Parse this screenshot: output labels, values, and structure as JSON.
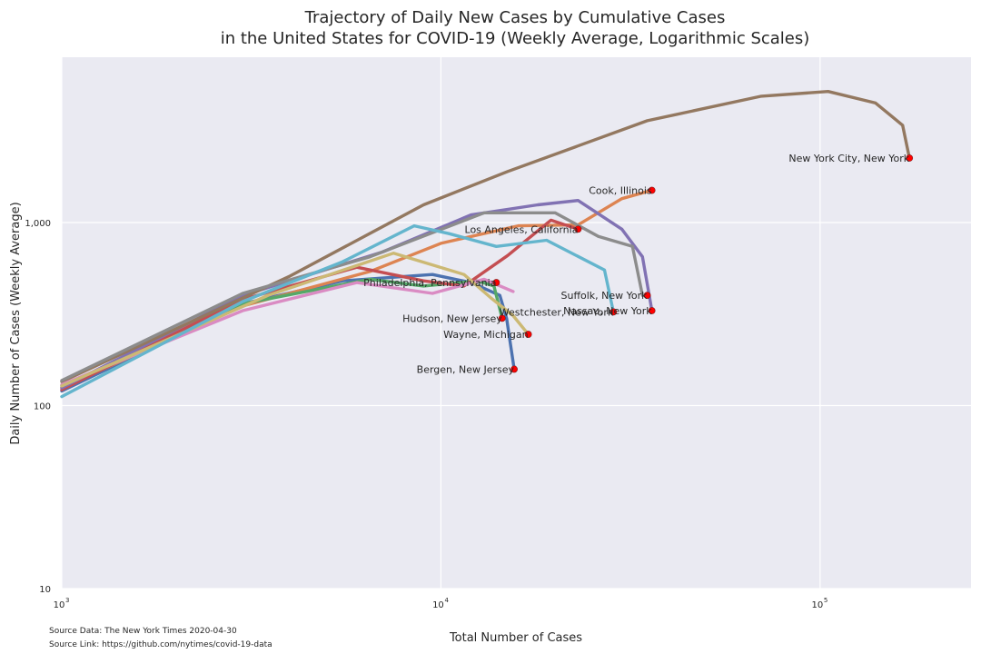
{
  "chart_data": {
    "type": "line",
    "title_line1": "Trajectory of Daily New Cases by Cumulative Cases",
    "title_line2": "in the United States for COVID-19 (Weekly Average, Logarithmic Scales)",
    "xlabel": "Total Number of Cases",
    "ylabel": "Daily Number of Cases (Weekly Average)",
    "x_scale": "log",
    "y_scale": "log",
    "xlim": [
      1000,
      250000
    ],
    "ylim": [
      10,
      8000
    ],
    "x_ticks": [
      {
        "value": 1000,
        "base": "10",
        "exp": "3"
      },
      {
        "value": 10000,
        "base": "10",
        "exp": "4"
      },
      {
        "value": 100000,
        "base": "10",
        "exp": "5"
      }
    ],
    "y_ticks": [
      {
        "value": 10,
        "label": "10"
      },
      {
        "value": 100,
        "label": "100"
      },
      {
        "value": 1000,
        "label": "1,000"
      }
    ],
    "grid": true,
    "background": "#eaeaf2",
    "series": [
      {
        "name": "Bergen, New Jersey",
        "color": "#4c72b0",
        "points": [
          [
            1000,
            120
          ],
          [
            3000,
            360
          ],
          [
            5500,
            480
          ],
          [
            9500,
            520
          ],
          [
            12000,
            470
          ],
          [
            14300,
            400
          ],
          [
            14900,
            300
          ],
          [
            15600,
            158
          ]
        ]
      },
      {
        "name": "Los Angeles, California",
        "color": "#dd8452",
        "points": [
          [
            1000,
            125
          ],
          [
            3000,
            350
          ],
          [
            6500,
            540
          ],
          [
            10000,
            770
          ],
          [
            16000,
            960
          ],
          [
            23000,
            970
          ],
          [
            30000,
            1350
          ],
          [
            36000,
            1500
          ]
        ]
      },
      {
        "name": "Hudson, New Jersey",
        "color": "#55a868",
        "points": [
          [
            1000,
            128
          ],
          [
            3000,
            360
          ],
          [
            6500,
            490
          ],
          [
            9000,
            450
          ],
          [
            12500,
            480
          ],
          [
            13800,
            450
          ],
          [
            14500,
            300
          ]
        ]
      },
      {
        "name": "Nassau, New York",
        "color": "#c44e52",
        "points": [
          [
            1000,
            122
          ],
          [
            3000,
            380
          ],
          [
            6000,
            570
          ],
          [
            9000,
            480
          ],
          [
            11500,
            450
          ],
          [
            15000,
            660
          ],
          [
            19500,
            1030
          ],
          [
            23000,
            920
          ]
        ]
      },
      {
        "name": "Suffolk, New York",
        "color": "#8172b3",
        "points": [
          [
            1000,
            125
          ],
          [
            3000,
            400
          ],
          [
            7000,
            690
          ],
          [
            12000,
            1100
          ],
          [
            18000,
            1250
          ],
          [
            23000,
            1320
          ],
          [
            30000,
            920
          ],
          [
            34000,
            650
          ],
          [
            36000,
            330
          ]
        ]
      },
      {
        "name": "New York City, New York",
        "color": "#937860",
        "points": [
          [
            1000,
            135
          ],
          [
            4000,
            510
          ],
          [
            9000,
            1250
          ],
          [
            15000,
            1900
          ],
          [
            35000,
            3600
          ],
          [
            70000,
            4900
          ],
          [
            105000,
            5200
          ],
          [
            140000,
            4500
          ],
          [
            165000,
            3400
          ],
          [
            172000,
            2250
          ]
        ]
      },
      {
        "name": "Westchester, New York",
        "color": "#da8bc3",
        "points": [
          [
            1000,
            130
          ],
          [
            3000,
            330
          ],
          [
            6000,
            470
          ],
          [
            9500,
            410
          ],
          [
            13000,
            490
          ],
          [
            15500,
            420
          ]
        ]
      },
      {
        "name": "Cook, Illinois",
        "color": "#8c8c8c",
        "points": [
          [
            1000,
            137
          ],
          [
            3000,
            410
          ],
          [
            6500,
            650
          ],
          [
            9500,
            880
          ],
          [
            13000,
            1130
          ],
          [
            20000,
            1130
          ],
          [
            26000,
            840
          ],
          [
            32000,
            740
          ],
          [
            34000,
            400
          ]
        ]
      },
      {
        "name": "Wayne, Michigan",
        "color": "#ccb974",
        "points": [
          [
            1000,
            128
          ],
          [
            3500,
            400
          ],
          [
            7500,
            680
          ],
          [
            11500,
            520
          ],
          [
            13500,
            390
          ],
          [
            15500,
            310
          ],
          [
            17000,
            245
          ]
        ]
      },
      {
        "name": "Philadelphia, Pennsylvania",
        "color": "#64b5cd",
        "points": [
          [
            1000,
            112
          ],
          [
            3000,
            370
          ],
          [
            5500,
            610
          ],
          [
            8500,
            960
          ],
          [
            10500,
            870
          ],
          [
            14000,
            740
          ],
          [
            19000,
            800
          ],
          [
            27000,
            550
          ],
          [
            28500,
            325
          ]
        ]
      }
    ],
    "annotations": [
      {
        "label": "New York City, New York",
        "x": 172000,
        "y": 2250
      },
      {
        "label": "Cook, Illinois",
        "x": 36000,
        "y": 1500
      },
      {
        "label": "Los Angeles, California",
        "x": 23000,
        "y": 920
      },
      {
        "label": "Philadelphia, Pennsylvania",
        "x": 14000,
        "y": 470
      },
      {
        "label": "Suffolk, New York",
        "x": 35000,
        "y": 400
      },
      {
        "label": "Nassau, New York",
        "x": 36000,
        "y": 330
      },
      {
        "label": "Westchester, New York",
        "x": 28500,
        "y": 325
      },
      {
        "label": "Hudson, New Jersey",
        "x": 14500,
        "y": 300
      },
      {
        "label": "Wayne, Michigan",
        "x": 17000,
        "y": 245
      },
      {
        "label": "Bergen, New Jersey",
        "x": 15600,
        "y": 158
      }
    ],
    "marker_color": "#ff0000",
    "source_data": "Source Data: The New York Times 2020-04-30",
    "source_link": "Source Link: https://github.com/nytimes/covid-19-data"
  }
}
